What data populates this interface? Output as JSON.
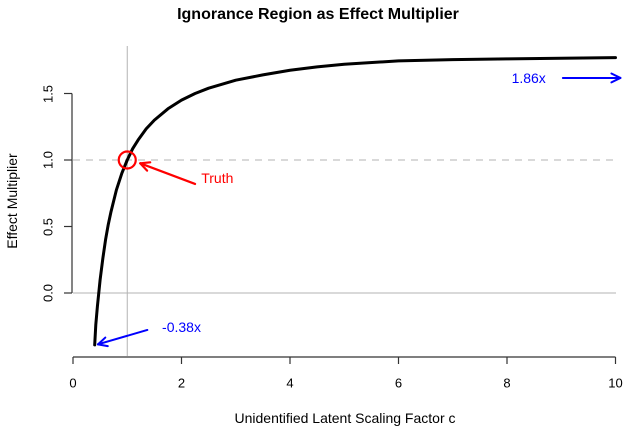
{
  "chart_data": {
    "type": "line",
    "title": "Ignorance Region as Effect Multiplier",
    "xlabel": "Unidentified Latent Scaling Factor c",
    "ylabel": "Effect Multiplier",
    "xlim": [
      0,
      10
    ],
    "ylim": [
      -0.48,
      1.86
    ],
    "xticks": [
      0,
      2,
      4,
      6,
      8,
      10
    ],
    "yticks": [
      "0.0",
      "0.5",
      "1.0",
      "1.5"
    ],
    "grid": false,
    "legend": "none",
    "curve_color": "#000000",
    "axis_color": "#333333",
    "reference_color": "#b3b3b3",
    "series": [
      {
        "name": "effect-multiplier-curve",
        "x": [
          0.4,
          0.42,
          0.45,
          0.5,
          0.55,
          0.6,
          0.65,
          0.7,
          0.8,
          0.9,
          1.0,
          1.1,
          1.2,
          1.35,
          1.5,
          1.75,
          2.0,
          2.25,
          2.5,
          3.0,
          3.5,
          4.0,
          4.5,
          5.0,
          6.0,
          7.0,
          8.0,
          9.0,
          10.0
        ],
        "y": [
          -0.39,
          -0.24,
          -0.1,
          0.1,
          0.26,
          0.4,
          0.515,
          0.61,
          0.775,
          0.9,
          1.0,
          1.085,
          1.15,
          1.235,
          1.3,
          1.385,
          1.45,
          1.5,
          1.54,
          1.6,
          1.64,
          1.675,
          1.7,
          1.72,
          1.745,
          1.755,
          1.76,
          1.765,
          1.77
        ]
      }
    ],
    "reference_lines": [
      {
        "type": "vline",
        "x": 1,
        "style": "solid",
        "color": "#b3b3b3"
      },
      {
        "type": "hline",
        "y": 1,
        "style": "dashed",
        "color": "#b3b3b3"
      },
      {
        "type": "hline",
        "y": 0,
        "style": "solid",
        "color": "#b3b3b3"
      }
    ],
    "annotations": [
      {
        "id": "truth",
        "label": "Truth",
        "color": "#ff0000",
        "marker": {
          "shape": "open-circle",
          "x": 1,
          "y": 1
        },
        "arrow": {
          "from": [
            2.25,
            0.82
          ],
          "to": [
            1.24,
            0.975
          ],
          "width": 2.2
        },
        "text_pos": [
          2.66,
          0.862
        ]
      },
      {
        "id": "upper-bound",
        "label": "1.86x",
        "color": "#0000ff",
        "arrow": {
          "from": [
            9.03,
            1.617
          ],
          "to": [
            10.09,
            1.617
          ],
          "width": 2
        },
        "text_pos": [
          8.4,
          1.617
        ]
      },
      {
        "id": "lower-bound",
        "label": "-0.38x",
        "color": "#0000ff",
        "arrow": {
          "from": [
            1.37,
            -0.278
          ],
          "to": [
            0.46,
            -0.386
          ],
          "width": 2
        },
        "text_pos": [
          2.0,
          -0.256
        ]
      }
    ]
  }
}
